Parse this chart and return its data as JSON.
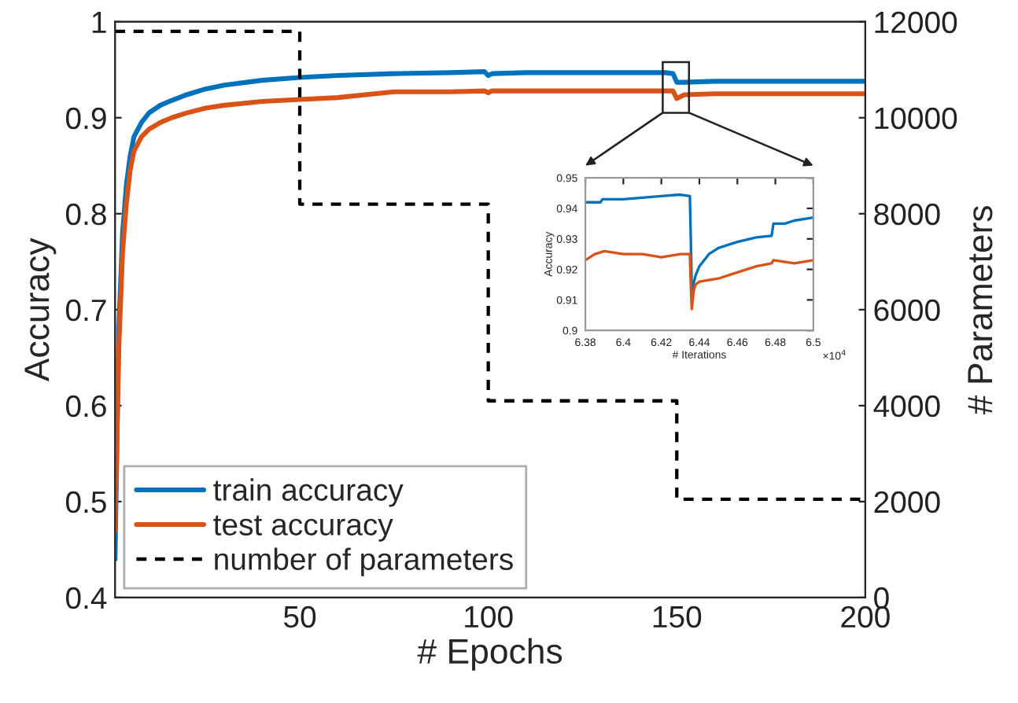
{
  "chart_data": [
    {
      "type": "line",
      "xlabel": "# Epochs",
      "ylabel": "Accuracy",
      "y2label": "# Parameters",
      "xlim": [
        1,
        200
      ],
      "xticks": [
        50,
        100,
        150,
        200
      ],
      "ylim": [
        0.4,
        1
      ],
      "yticks": [
        0.4,
        0.5,
        0.6,
        0.7,
        0.8,
        0.9,
        1
      ],
      "y2lim": [
        0,
        12000
      ],
      "y2ticks": [
        0,
        2000,
        4000,
        6000,
        8000,
        10000,
        12000
      ],
      "grid": false,
      "legend": "bottom left",
      "series": [
        {
          "name": "train accuracy",
          "color": "#0072bd",
          "x": [
            1,
            2,
            3,
            4,
            5,
            6,
            8,
            10,
            13,
            16,
            20,
            25,
            30,
            40,
            50,
            60,
            75,
            90,
            99,
            100,
            101,
            110,
            125,
            140,
            147,
            149,
            150,
            152,
            160,
            180,
            200
          ],
          "values": [
            0.44,
            0.68,
            0.78,
            0.83,
            0.86,
            0.88,
            0.895,
            0.905,
            0.913,
            0.918,
            0.924,
            0.93,
            0.934,
            0.939,
            0.942,
            0.944,
            0.946,
            0.947,
            0.948,
            0.944,
            0.946,
            0.947,
            0.947,
            0.947,
            0.947,
            0.946,
            0.937,
            0.937,
            0.938,
            0.938,
            0.938
          ]
        },
        {
          "name": "test accuracy",
          "color": "#d95319",
          "x": [
            1,
            2,
            3,
            4,
            5,
            6,
            8,
            10,
            13,
            16,
            20,
            25,
            30,
            40,
            50,
            60,
            75,
            90,
            99,
            100,
            101,
            110,
            125,
            140,
            147,
            149,
            150,
            152,
            160,
            180,
            200
          ],
          "values": [
            0.47,
            0.66,
            0.76,
            0.81,
            0.845,
            0.865,
            0.88,
            0.888,
            0.895,
            0.9,
            0.905,
            0.91,
            0.913,
            0.917,
            0.919,
            0.921,
            0.927,
            0.927,
            0.928,
            0.926,
            0.928,
            0.928,
            0.928,
            0.928,
            0.928,
            0.928,
            0.92,
            0.924,
            0.925,
            0.925,
            0.925
          ]
        },
        {
          "name": "number of parameters",
          "type": "step",
          "axis": "y2",
          "color": "#000000",
          "line_style": "dashed",
          "x": [
            1,
            50,
            100,
            150,
            200
          ],
          "values": [
            11800,
            8200,
            4100,
            2050,
            2050
          ]
        }
      ]
    },
    {
      "type": "line",
      "xlabel": "# Iterations",
      "ylabel": "Accuracy",
      "annotations": [
        "×10$^{4}$"
      ],
      "xlim": [
        6.38,
        6.5
      ],
      "xticks": [
        {
          "value": 6.38,
          "label": "6.38"
        },
        {
          "value": 6.4,
          "label": "6.4"
        },
        {
          "value": 6.42,
          "label": "6.42"
        },
        {
          "value": 6.44,
          "label": "6.44"
        },
        {
          "value": 6.46,
          "label": "6.46"
        },
        {
          "value": 6.48,
          "label": "6.48"
        },
        {
          "value": 6.5,
          "label": "6.5"
        }
      ],
      "ylim": [
        0.9,
        0.95
      ],
      "yticks": [
        {
          "value": 0.9,
          "label": "0.9"
        },
        0.91,
        0.92,
        0.93,
        0.94,
        0.95
      ],
      "grid": false,
      "series": [
        {
          "color": "#0072bd",
          "x": [
            6.38,
            6.388,
            6.389,
            6.4,
            6.41,
            6.42,
            6.43,
            6.435,
            6.4355,
            6.436,
            6.438,
            6.44,
            6.445,
            6.45,
            6.46,
            6.47,
            6.478,
            6.479,
            6.485,
            6.49,
            6.5
          ],
          "values": [
            0.942,
            0.942,
            0.943,
            0.943,
            0.9435,
            0.944,
            0.9445,
            0.944,
            0.93,
            0.913,
            0.918,
            0.921,
            0.925,
            0.927,
            0.929,
            0.9305,
            0.931,
            0.935,
            0.935,
            0.936,
            0.937
          ]
        },
        {
          "color": "#d95319",
          "x": [
            6.38,
            6.385,
            6.39,
            6.4,
            6.41,
            6.42,
            6.43,
            6.435,
            6.4355,
            6.436,
            6.437,
            6.438,
            6.44,
            6.45,
            6.46,
            6.47,
            6.478,
            6.479,
            6.49,
            6.5
          ],
          "values": [
            0.923,
            0.925,
            0.926,
            0.925,
            0.925,
            0.924,
            0.925,
            0.925,
            0.915,
            0.907,
            0.913,
            0.915,
            0.916,
            0.917,
            0.919,
            0.921,
            0.922,
            0.923,
            0.922,
            0.923
          ]
        }
      ]
    }
  ]
}
